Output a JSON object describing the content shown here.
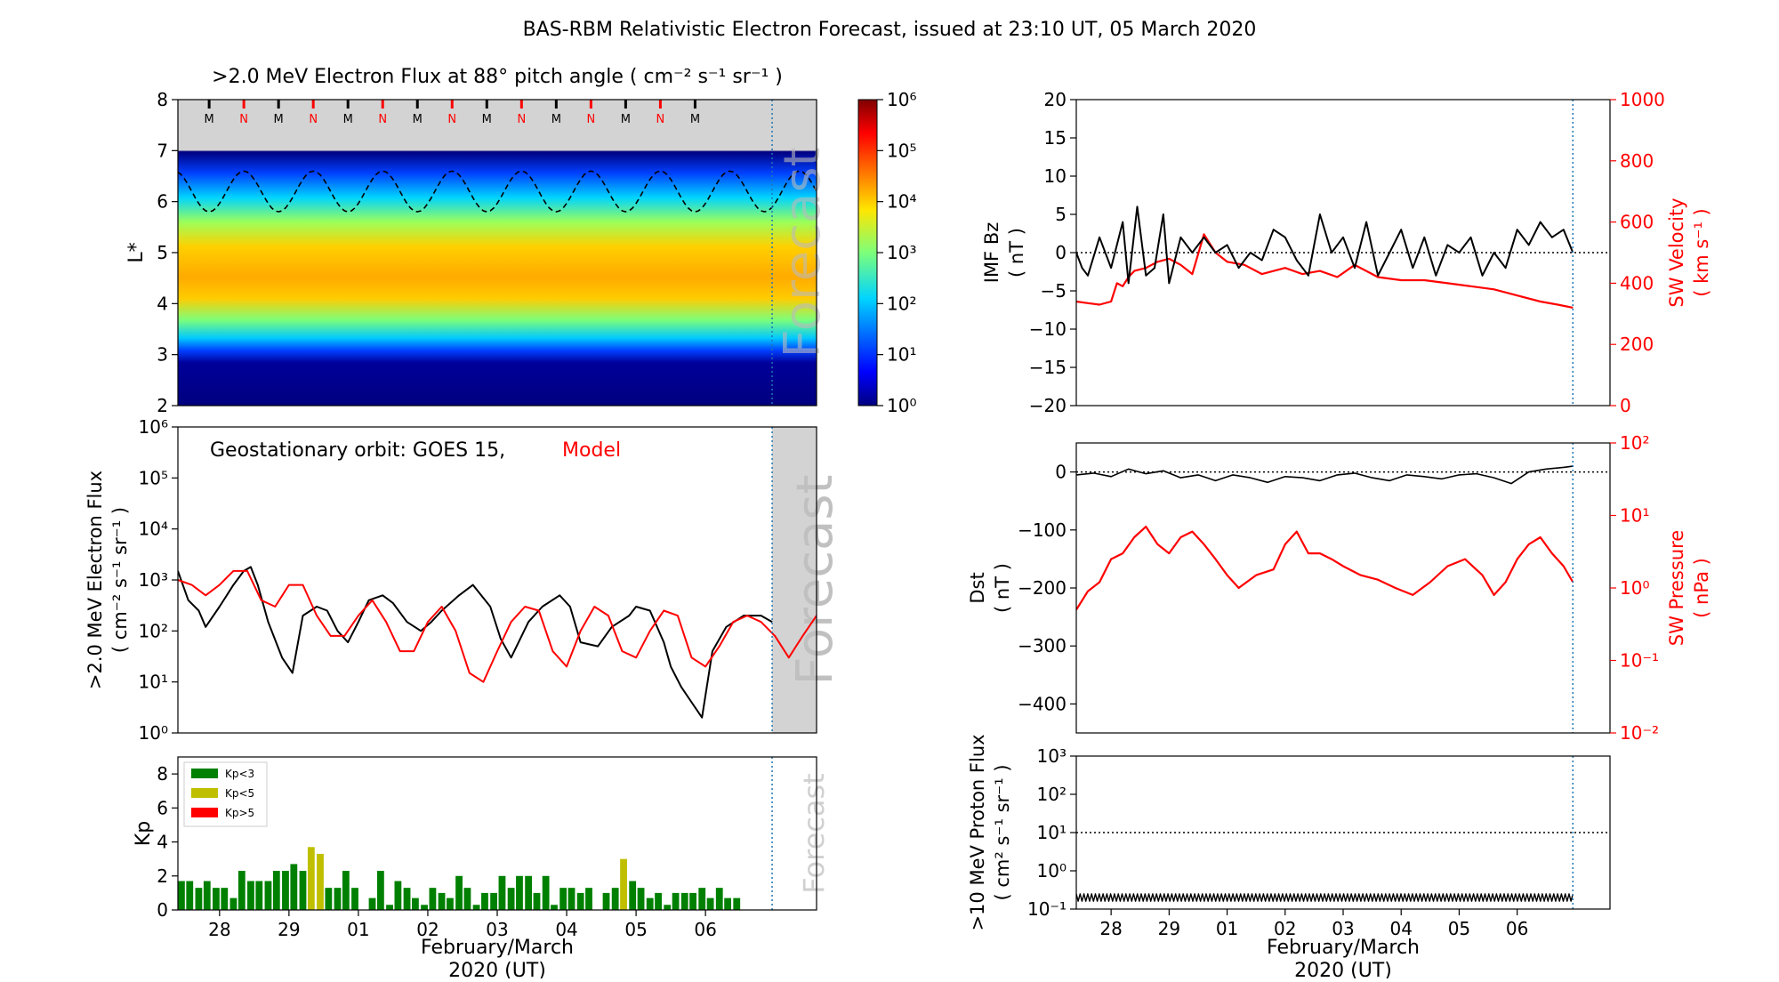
{
  "figure_title": "BAS-RBM Relativistic Electron Forecast, issued at 23:10 UT, 05 March 2020",
  "colors": {
    "model": "#ff0000",
    "obs": "#000000",
    "forecast_shade": "#d3d3d3",
    "divider": "#1f77b4",
    "kp_low": "#008000",
    "kp_mid": "#bfbf00",
    "kp_high": "#ff0000"
  },
  "x_axis": {
    "ticks": [
      "28",
      "29",
      "01",
      "02",
      "03",
      "04",
      "05",
      "06"
    ],
    "label_line1": "February/March",
    "label_line2": "2020 (UT)",
    "range": [
      -0.6,
      8.6
    ],
    "forecast_start": 7.96
  },
  "chart_data": [
    {
      "id": "flux_map",
      "type": "heatmap",
      "title": ">2.0 MeV Electron Flux at 88° pitch angle ( cm⁻² s⁻¹ sr⁻¹ )",
      "ylabel": "L*",
      "ylim": [
        2,
        8
      ],
      "yticks": [
        "2",
        "3",
        "4",
        "5",
        "6",
        "7",
        "8"
      ],
      "colorbar_ticks": [
        "10⁰",
        "10¹",
        "10²",
        "10³",
        "10⁴",
        "10⁵",
        "10⁶"
      ],
      "colorbar_range_log10": [
        0,
        6
      ],
      "forecast_text": "Forecast",
      "mn_markers": [
        "M",
        "N",
        "M",
        "N",
        "M",
        "N",
        "M",
        "N",
        "M",
        "N",
        "M",
        "N",
        "M",
        "N",
        "M"
      ],
      "grid": false
    },
    {
      "id": "geo_flux",
      "type": "line",
      "ylabel_line1": ">2.0 MeV Electron Flux",
      "ylabel_line2": "( cm⁻² s⁻¹ sr⁻¹ )",
      "annotation_obs": "Geostationary orbit:   GOES 15,",
      "annotation_model": "Model",
      "forecast_text": "Forecast",
      "yscale": "log",
      "ylim_log10": [
        0,
        6
      ],
      "yticks": [
        "10⁰",
        "10¹",
        "10²",
        "10³",
        "10⁴",
        "10⁵",
        "10⁶"
      ],
      "series": [
        {
          "name": "GOES 15",
          "x": [
            -0.6,
            -0.45,
            -0.3,
            -0.2,
            0.0,
            0.2,
            0.35,
            0.45,
            0.55,
            0.7,
            0.9,
            1.05,
            1.2,
            1.4,
            1.55,
            1.7,
            1.85,
            2.0,
            2.15,
            2.35,
            2.5,
            2.7,
            2.9,
            3.05,
            3.2,
            3.45,
            3.65,
            3.9,
            4.05,
            4.2,
            4.45,
            4.65,
            4.9,
            5.05,
            5.2,
            5.45,
            5.65,
            5.9,
            6.0,
            6.2,
            6.4,
            6.5,
            6.65,
            6.8,
            6.95,
            7.1,
            7.3,
            7.55,
            7.8,
            7.96
          ],
          "values": [
            1500,
            400,
            250,
            120,
            300,
            800,
            1500,
            1800,
            800,
            150,
            30,
            15,
            200,
            300,
            250,
            100,
            60,
            150,
            400,
            500,
            350,
            150,
            100,
            150,
            250,
            500,
            800,
            300,
            70,
            30,
            150,
            300,
            500,
            300,
            60,
            50,
            120,
            200,
            300,
            250,
            60,
            20,
            8,
            4,
            2,
            40,
            120,
            200,
            200,
            150
          ]
        },
        {
          "name": "Model",
          "x": [
            -0.6,
            -0.4,
            -0.2,
            0.0,
            0.2,
            0.4,
            0.6,
            0.8,
            1.0,
            1.2,
            1.4,
            1.6,
            1.8,
            2.0,
            2.2,
            2.4,
            2.6,
            2.8,
            3.0,
            3.2,
            3.4,
            3.6,
            3.8,
            4.0,
            4.2,
            4.4,
            4.6,
            4.8,
            5.0,
            5.2,
            5.4,
            5.6,
            5.8,
            6.0,
            6.2,
            6.4,
            6.6,
            6.8,
            7.0,
            7.2,
            7.4,
            7.6,
            7.8,
            8.0,
            8.2,
            8.4,
            8.6
          ],
          "values": [
            1000,
            800,
            500,
            800,
            1500,
            1500,
            400,
            300,
            800,
            800,
            200,
            80,
            80,
            200,
            400,
            150,
            40,
            40,
            150,
            300,
            100,
            15,
            10,
            40,
            150,
            300,
            250,
            40,
            20,
            100,
            300,
            200,
            40,
            30,
            100,
            250,
            200,
            30,
            20,
            50,
            150,
            200,
            150,
            80,
            30,
            80,
            200
          ]
        }
      ]
    },
    {
      "id": "kp",
      "type": "bar",
      "ylabel": "Kp",
      "ylim": [
        0,
        9
      ],
      "yticks": [
        "0",
        "2",
        "4",
        "6",
        "8"
      ],
      "forecast_text": "Forecast",
      "legend": [
        "Kp<3",
        "Kp<5",
        "Kp>5"
      ],
      "legend_placement": "top-left",
      "bar_width": 0.1,
      "x": [
        -0.55,
        -0.43,
        -0.3,
        -0.18,
        -0.05,
        0.07,
        0.2,
        0.32,
        0.45,
        0.57,
        0.7,
        0.82,
        0.95,
        1.07,
        1.2,
        1.32,
        1.45,
        1.57,
        1.7,
        1.82,
        1.95,
        2.2,
        2.32,
        2.45,
        2.57,
        2.7,
        2.82,
        2.95,
        3.07,
        3.2,
        3.32,
        3.45,
        3.57,
        3.7,
        3.82,
        3.95,
        4.07,
        4.2,
        4.32,
        4.45,
        4.57,
        4.7,
        4.82,
        4.95,
        5.07,
        5.2,
        5.32,
        5.57,
        5.7,
        5.82,
        5.95,
        6.07,
        6.2,
        6.32,
        6.45,
        6.57,
        6.7,
        6.82,
        6.95,
        7.07,
        7.2,
        7.32,
        7.45
      ],
      "values": [
        1.7,
        1.7,
        1.3,
        1.7,
        1.3,
        1.3,
        0.7,
        2.3,
        1.7,
        1.7,
        1.7,
        2.3,
        2.3,
        2.7,
        2.3,
        3.7,
        3.3,
        1.3,
        1.3,
        2.3,
        1.3,
        0.7,
        2.3,
        0.3,
        1.7,
        1.3,
        0.7,
        0.3,
        1.3,
        1.0,
        0.7,
        2.0,
        1.3,
        0.3,
        1.0,
        1.0,
        2.0,
        1.3,
        2.0,
        2.0,
        1.0,
        2.0,
        0.3,
        1.3,
        1.3,
        1.0,
        1.3,
        1.0,
        1.3,
        3.0,
        1.7,
        1.3,
        0.7,
        1.0,
        0.3,
        1.0,
        1.0,
        1.0,
        1.3,
        0.7,
        1.3,
        0.7,
        0.7
      ]
    },
    {
      "id": "imf_vsw",
      "type": "line",
      "ylabel_left_line1": "IMF Bz",
      "ylabel_left_line2": "( nT )",
      "ylabel_right_line1": "SW Velocity",
      "ylabel_right_line2": "( km s⁻¹ )",
      "ylim_left": [
        -20,
        20
      ],
      "yticks_left": [
        "−20",
        "−15",
        "−10",
        "−5",
        "0",
        "5",
        "10",
        "15",
        "20"
      ],
      "ylim_right": [
        0,
        1000
      ],
      "yticks_right": [
        "0",
        "200",
        "400",
        "600",
        "800",
        "1000"
      ],
      "series": [
        {
          "name": "IMF Bz",
          "axis": "left",
          "x": [
            -0.6,
            -0.5,
            -0.4,
            -0.2,
            0.0,
            0.2,
            0.3,
            0.45,
            0.6,
            0.75,
            0.9,
            1.0,
            1.2,
            1.4,
            1.6,
            1.8,
            2.0,
            2.2,
            2.4,
            2.6,
            2.8,
            3.0,
            3.2,
            3.4,
            3.6,
            3.8,
            4.0,
            4.2,
            4.4,
            4.6,
            4.8,
            5.0,
            5.2,
            5.4,
            5.6,
            5.8,
            6.0,
            6.2,
            6.4,
            6.6,
            6.8,
            7.0,
            7.2,
            7.4,
            7.6,
            7.8,
            7.96
          ],
          "values": [
            0,
            -2,
            -3,
            2,
            -2,
            4,
            -4,
            6,
            -3,
            -2,
            5,
            -4,
            2,
            0,
            2,
            0,
            1,
            -2,
            0,
            -1,
            3,
            2,
            -1,
            -3,
            5,
            0,
            2,
            -2,
            4,
            -3,
            0,
            3,
            -2,
            2,
            -3,
            1,
            0,
            2,
            -3,
            0,
            -2,
            3,
            1,
            4,
            2,
            3,
            0
          ]
        },
        {
          "name": "SW Velocity",
          "axis": "right",
          "x": [
            -0.6,
            -0.4,
            -0.2,
            0.0,
            0.1,
            0.2,
            0.3,
            0.4,
            0.6,
            0.8,
            1.0,
            1.2,
            1.4,
            1.6,
            1.8,
            2.0,
            2.3,
            2.6,
            3.0,
            3.3,
            3.6,
            3.9,
            4.2,
            4.6,
            5.0,
            5.4,
            5.8,
            6.2,
            6.6,
            7.0,
            7.4,
            7.7,
            7.96
          ],
          "values": [
            340,
            335,
            330,
            340,
            400,
            390,
            420,
            440,
            450,
            470,
            480,
            460,
            430,
            560,
            500,
            470,
            460,
            430,
            450,
            430,
            440,
            420,
            460,
            420,
            410,
            410,
            400,
            390,
            380,
            360,
            340,
            330,
            320
          ]
        }
      ]
    },
    {
      "id": "dst_psw",
      "type": "line",
      "ylabel_left_line1": "Dst",
      "ylabel_left_line2": "( nT )",
      "ylabel_right_line1": "SW Pressure",
      "ylabel_right_line2": "( nPa )",
      "ylim_left": [
        -450,
        50
      ],
      "yticks_left": [
        "0",
        "−100",
        "−200",
        "−300",
        "−400"
      ],
      "yscale_right": "log",
      "ylim_right_log10": [
        -2,
        2
      ],
      "yticks_right": [
        "10⁻²",
        "10⁻¹",
        "10⁰",
        "10¹",
        "10²"
      ],
      "series": [
        {
          "name": "Dst",
          "axis": "left",
          "x": [
            -0.6,
            -0.3,
            0.0,
            0.3,
            0.6,
            0.9,
            1.2,
            1.5,
            1.8,
            2.1,
            2.4,
            2.7,
            3.0,
            3.3,
            3.6,
            3.9,
            4.2,
            4.5,
            4.8,
            5.1,
            5.4,
            5.7,
            6.0,
            6.3,
            6.6,
            6.9,
            7.2,
            7.5,
            7.8,
            7.96
          ],
          "values": [
            -5,
            -2,
            -8,
            5,
            -3,
            2,
            -10,
            -5,
            -15,
            -5,
            -10,
            -18,
            -8,
            -10,
            -15,
            -5,
            -2,
            -10,
            -15,
            -5,
            -8,
            -12,
            -5,
            -3,
            -10,
            -20,
            0,
            5,
            8,
            10
          ]
        },
        {
          "name": "SW Pressure",
          "axis": "right",
          "x": [
            -0.6,
            -0.4,
            -0.2,
            0.0,
            0.2,
            0.4,
            0.6,
            0.8,
            1.0,
            1.2,
            1.4,
            1.6,
            1.8,
            2.0,
            2.2,
            2.5,
            2.8,
            3.0,
            3.2,
            3.4,
            3.6,
            3.8,
            4.0,
            4.3,
            4.6,
            4.9,
            5.2,
            5.5,
            5.8,
            6.1,
            6.4,
            6.6,
            6.8,
            7.0,
            7.2,
            7.4,
            7.6,
            7.8,
            7.96
          ],
          "values": [
            0.5,
            0.9,
            1.2,
            2.5,
            3,
            5,
            7,
            4,
            3,
            5,
            6,
            4,
            2.5,
            1.5,
            1,
            1.5,
            1.8,
            4,
            6,
            3,
            3,
            2.5,
            2,
            1.5,
            1.3,
            1,
            0.8,
            1.2,
            2,
            2.5,
            1.5,
            0.8,
            1.2,
            2.5,
            4,
            5,
            3,
            2,
            1.2
          ]
        }
      ]
    },
    {
      "id": "proton_flux",
      "type": "line",
      "ylabel_line1": ">10 MeV Proton Flux",
      "ylabel_line2": "( cm² s⁻¹ sr⁻¹ )",
      "yscale": "log",
      "ylim_log10": [
        -1,
        3
      ],
      "yticks": [
        "10⁻¹",
        "10⁰",
        "10¹",
        "10²",
        "10³"
      ],
      "threshold": 10,
      "series": [
        {
          "name": ">10 MeV Proton Flux",
          "x": [
            -0.6,
            7.96
          ],
          "values": [
            0.2,
            0.2
          ]
        }
      ]
    }
  ]
}
